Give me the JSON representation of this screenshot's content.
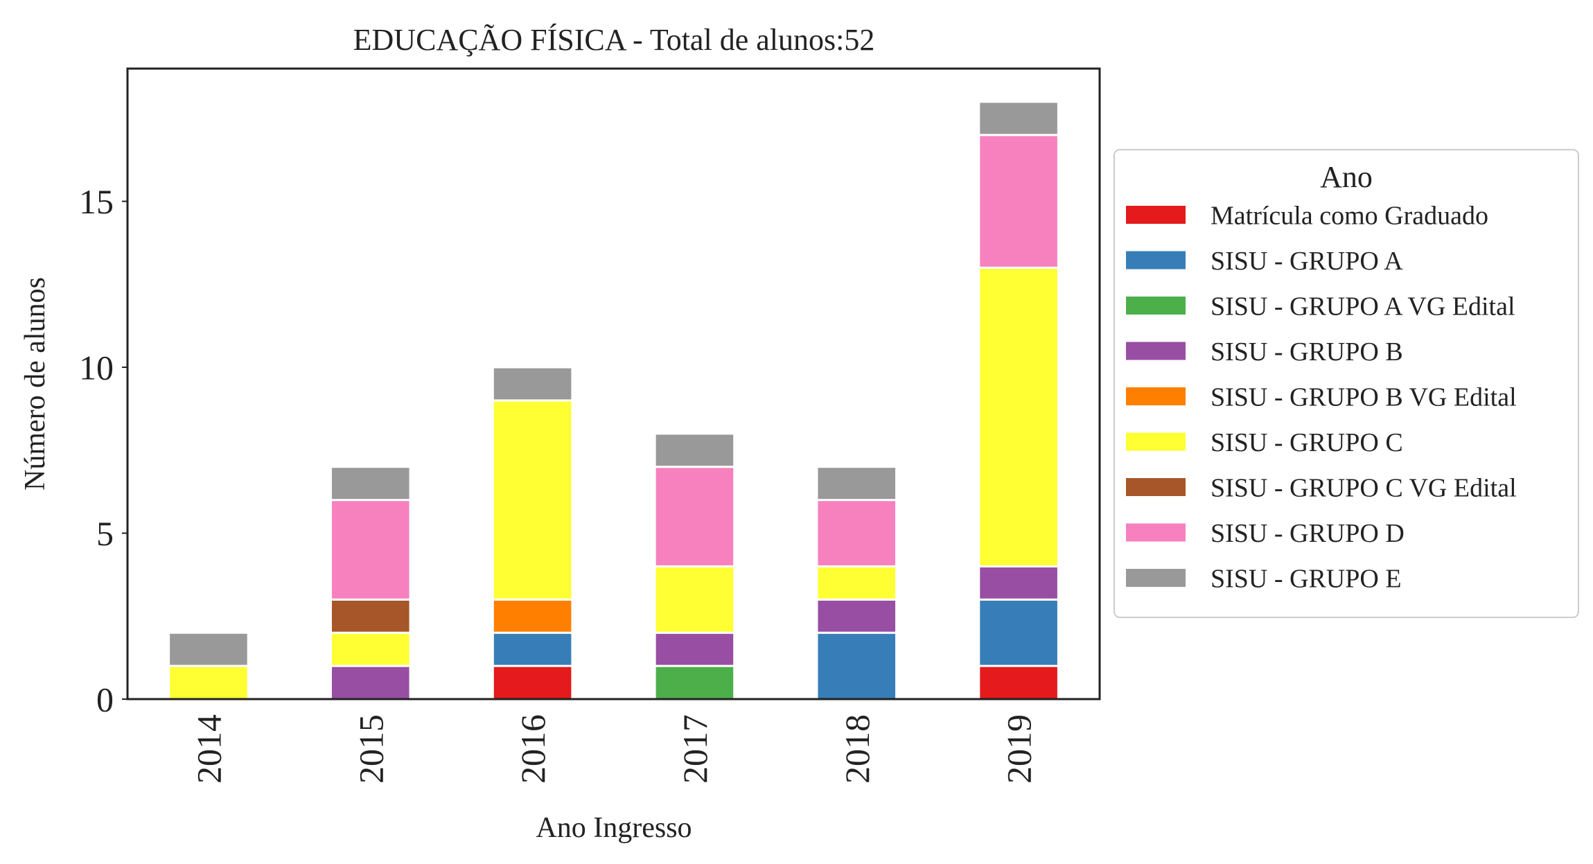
{
  "chart_data": {
    "type": "bar",
    "stacked": true,
    "title": "EDUCAÇÃO FÍSICA - Total de alunos:52",
    "xlabel": "Ano Ingresso",
    "ylabel": "Número de alunos",
    "ylim": [
      0,
      19
    ],
    "yticks": [
      0,
      5,
      10,
      15
    ],
    "grid": false,
    "legend_title": "Ano",
    "legend_placement": "right-outside",
    "categories": [
      "2014",
      "2015",
      "2016",
      "2017",
      "2018",
      "2019"
    ],
    "series": [
      {
        "name": "Matrícula como Graduado",
        "color": "#e41a1c",
        "values": [
          0,
          0,
          1,
          0,
          0,
          1
        ]
      },
      {
        "name": "SISU - GRUPO A",
        "color": "#377eb8",
        "values": [
          0,
          0,
          1,
          0,
          2,
          2
        ]
      },
      {
        "name": "SISU - GRUPO A VG Edital",
        "color": "#4daf4a",
        "values": [
          0,
          0,
          0,
          1,
          0,
          0
        ]
      },
      {
        "name": "SISU - GRUPO B",
        "color": "#984ea3",
        "values": [
          0,
          1,
          0,
          1,
          1,
          1
        ]
      },
      {
        "name": "SISU - GRUPO B VG Edital",
        "color": "#ff7f00",
        "values": [
          0,
          0,
          1,
          0,
          0,
          0
        ]
      },
      {
        "name": "SISU - GRUPO C",
        "color": "#ffff33",
        "values": [
          1,
          1,
          6,
          2,
          1,
          9
        ]
      },
      {
        "name": "SISU - GRUPO C VG Edital",
        "color": "#a65628",
        "values": [
          0,
          1,
          0,
          0,
          0,
          0
        ]
      },
      {
        "name": "SISU - GRUPO D",
        "color": "#f781bf",
        "values": [
          0,
          3,
          0,
          3,
          2,
          4
        ]
      },
      {
        "name": "SISU - GRUPO E",
        "color": "#999999",
        "values": [
          1,
          1,
          1,
          1,
          1,
          1
        ]
      }
    ]
  }
}
